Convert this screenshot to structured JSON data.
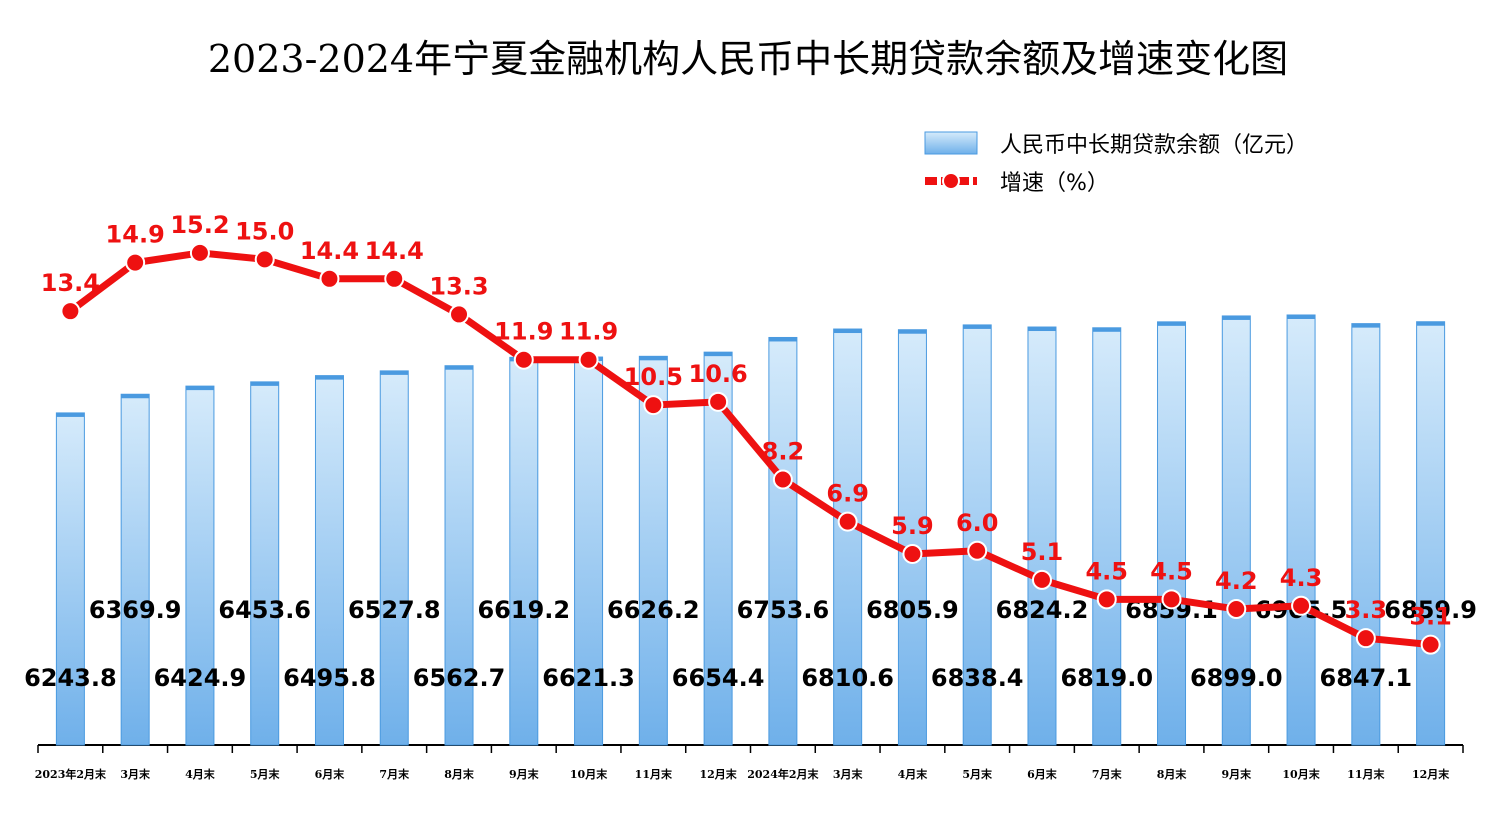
{
  "chart_data": {
    "type": "bar-line",
    "title": "2023-2024年宁夏金融机构人民币中长期贷款余额及增速变化图",
    "categories": [
      "2023年2月末",
      "3月末",
      "4月末",
      "5月末",
      "6月末",
      "7月末",
      "8月末",
      "9月末",
      "10月末",
      "11月末",
      "12月末",
      "2024年2月末",
      "3月末",
      "4月末",
      "5月末",
      "6月末",
      "7月末",
      "8月末",
      "9月末",
      "10月末",
      "11月末",
      "12月末"
    ],
    "ylim": [
      4000,
      7500
    ],
    "y2lim": [
      0,
      16
    ],
    "series": [
      {
        "name": "人民币中长期贷款余额（亿元）",
        "type": "bar",
        "color": "#4a9ae0",
        "values": [
          6243.8,
          6369.9,
          6424.9,
          6453.6,
          6495.8,
          6527.8,
          6562.7,
          6619.2,
          6621.3,
          6626.2,
          6654.4,
          6753.6,
          6810.6,
          6805.9,
          6838.4,
          6824.2,
          6819.0,
          6859.1,
          6899.0,
          6905.5,
          6847.1,
          6859.9
        ],
        "value_labels": [
          "6243.8",
          "6369.9",
          "6424.9",
          "6453.6",
          "6495.8",
          "6527.8",
          "6562.7",
          "6619.2",
          "6621.3",
          "6626.2",
          "6654.4",
          "6753.6",
          "6810.6",
          "6805.9",
          "6838.4",
          "6824.2",
          "6819.0",
          "6859.1",
          "6899.0",
          "6905.5",
          "6847.1",
          "6859.9"
        ]
      },
      {
        "name": "增速（%）",
        "type": "line",
        "axis": "y2",
        "color": "#ee1111",
        "values": [
          13.4,
          14.9,
          15.2,
          15.0,
          14.4,
          14.4,
          13.3,
          11.9,
          11.9,
          10.5,
          10.6,
          8.2,
          6.9,
          5.9,
          6.0,
          5.1,
          4.5,
          4.5,
          4.2,
          4.3,
          3.3,
          3.1
        ],
        "value_labels": [
          "13.4",
          "14.9",
          "15.2",
          "15.0",
          "14.4",
          "14.4",
          "13.3",
          "11.9",
          "11.9",
          "10.5",
          "10.6",
          "8.2",
          "6.9",
          "5.9",
          "6.0",
          "5.1",
          "4.5",
          "4.5",
          "4.2",
          "4.3",
          "3.3",
          "3.1"
        ]
      }
    ]
  }
}
